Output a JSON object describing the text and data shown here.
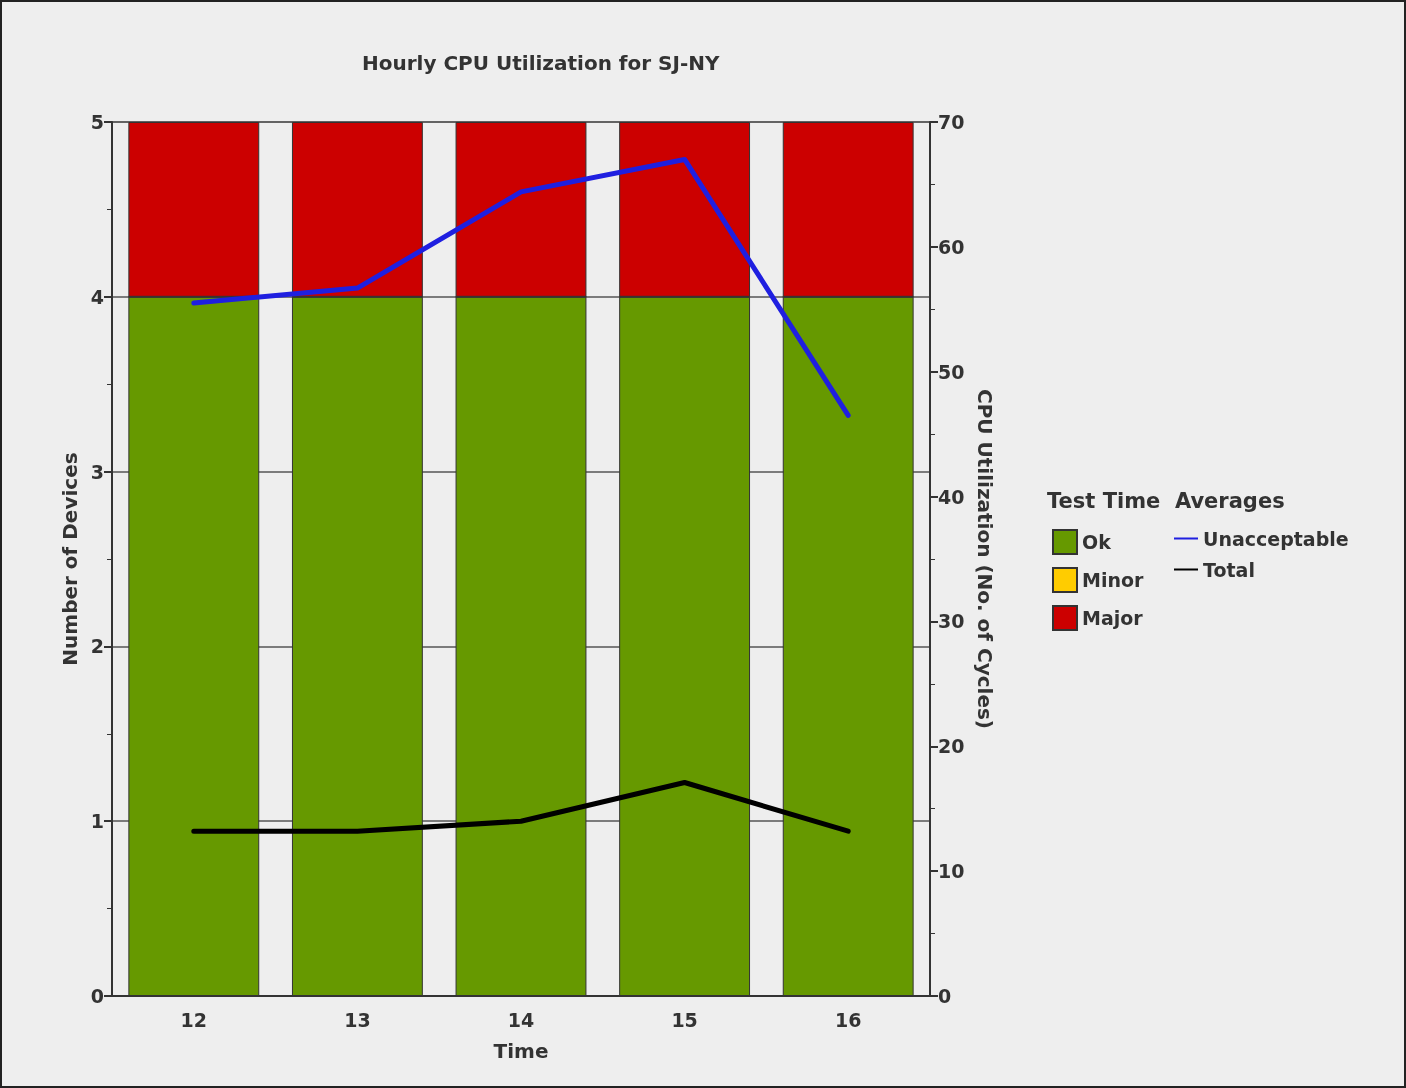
{
  "chart_data": {
    "type": "bar",
    "title": "Hourly CPU Utilization for SJ-NY",
    "xlabel": "Time",
    "ylabel": "Number of Devices",
    "y2label": "CPU Utilization (No. of Cycles)",
    "legend_title": "Test Time  Averages",
    "categories": [
      "12",
      "13",
      "14",
      "15",
      "16"
    ],
    "stacked": true,
    "series": [
      {
        "name": "Ok",
        "color": "#669900",
        "values": [
          4,
          4,
          4,
          4,
          4
        ]
      },
      {
        "name": "Minor",
        "color": "#ffcc00",
        "values": [
          0,
          0,
          0,
          0,
          0
        ]
      },
      {
        "name": "Major",
        "color": "#cc0000",
        "values": [
          1,
          1,
          1,
          1,
          1
        ]
      },
      {
        "name": "Unacceptable",
        "type": "line",
        "axis": "y2",
        "color": "#1f1fe0",
        "values": [
          55.5,
          56.7,
          64.4,
          67.0,
          46.5
        ]
      },
      {
        "name": "Total",
        "type": "line",
        "axis": "y2",
        "color": "#000000",
        "values": [
          13.2,
          13.2,
          14.0,
          17.1,
          13.2
        ]
      }
    ],
    "ylim": [
      0,
      5
    ],
    "yticks": [
      0,
      1,
      2,
      3,
      4,
      5
    ],
    "y2lim": [
      0,
      70
    ],
    "y2ticks": [
      0,
      10,
      20,
      30,
      40,
      50,
      60,
      70
    ],
    "grid": "y",
    "legend": "right",
    "marker": "none",
    "line_style": "solid"
  }
}
